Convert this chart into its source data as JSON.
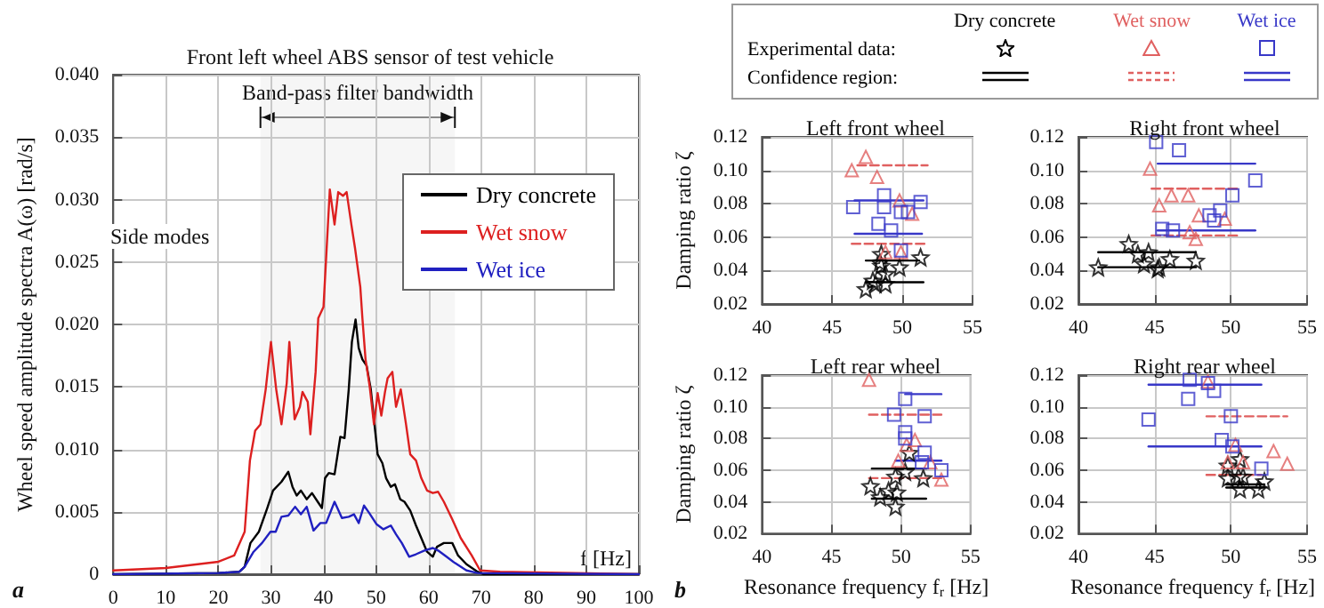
{
  "chart_data": [
    {
      "type": "line",
      "title": "Front left wheel ABS sensor of test vehicle",
      "xlabel": "f [Hz]",
      "ylabel": "Wheel speed amplitude spectra A(ω) [rad/s]",
      "xlim": [
        0,
        100
      ],
      "xticks": [
        0,
        10,
        20,
        30,
        40,
        50,
        60,
        70,
        80,
        90,
        100
      ],
      "ylim": [
        0,
        0.04
      ],
      "yticks": [
        0,
        0.005,
        {
          "value": 0.01,
          "label": "0.010"
        },
        0.015,
        {
          "value": 0.02,
          "label": "0.020"
        },
        0.025,
        {
          "value": 0.03,
          "label": "0.030"
        },
        0.035,
        {
          "value": 0.04,
          "label": "0.040"
        }
      ],
      "grid": true,
      "legend": "top right",
      "bands": [
        {
          "axis": "x",
          "from": 28,
          "to": 65,
          "label": "Band-pass filter bandwidth"
        }
      ],
      "annotations": [
        "Side modes",
        "a"
      ],
      "series": [
        {
          "name": "Dry concrete",
          "color": "#000000",
          "x": [
            0,
            20,
            24,
            25,
            26.1,
            27.7,
            29.3,
            30.4,
            32,
            33.3,
            34.1,
            34.9,
            35.7,
            36.8,
            37.8,
            38.9,
            39.7,
            40.3,
            41,
            42.1,
            43.2,
            44,
            44.8,
            45.4,
            46.1,
            46.7,
            47.4,
            48.2,
            49,
            49.6,
            50.3,
            51.2,
            51.9,
            52.8,
            53.6,
            54.6,
            55.4,
            56.5,
            57.6,
            58.6,
            59.7,
            60.8,
            61.6,
            62.9,
            64.5,
            65.6,
            67.2,
            69.3,
            70.4,
            100
          ],
          "values": [
            0,
            0.0001,
            0.0002,
            0.0006,
            0.0025,
            0.0034,
            0.0053,
            0.0067,
            0.0074,
            0.0082,
            0.007,
            0.0063,
            0.0067,
            0.006,
            0.0065,
            0.0058,
            0.0053,
            0.0077,
            0.0081,
            0.008,
            0.011,
            0.0109,
            0.0148,
            0.0186,
            0.0204,
            0.0181,
            0.0172,
            0.0167,
            0.0148,
            0.0124,
            0.0096,
            0.0089,
            0.0077,
            0.007,
            0.0072,
            0.006,
            0.0058,
            0.0051,
            0.0039,
            0.0029,
            0.0018,
            0.0014,
            0.0022,
            0.0025,
            0.0025,
            0.0015,
            0.0008,
            0.0002,
            0,
            0
          ]
        },
        {
          "name": "Wet snow",
          "color": "#dd2020",
          "x": [
            0,
            10,
            20,
            23,
            25,
            26,
            27,
            28,
            29,
            30,
            31,
            32,
            33,
            33.5,
            34.5,
            35.5,
            36,
            37,
            37.5,
            38.5,
            39,
            40,
            41.2,
            42.1,
            42.8,
            43.7,
            44.4,
            45.3,
            46,
            47,
            47.4,
            48,
            48.8,
            49.6,
            50.3,
            51,
            51.7,
            52.2,
            53.1,
            53.8,
            54.7,
            55.7,
            56.5,
            57.6,
            58.6,
            59.7,
            60.8,
            61.8,
            62.9,
            64.5,
            66.1,
            68.2,
            69.8,
            73.6,
            100
          ],
          "values": [
            0.0003,
            0.0005,
            0.001,
            0.0015,
            0.0034,
            0.0091,
            0.0115,
            0.012,
            0.0148,
            0.0186,
            0.0148,
            0.012,
            0.0153,
            0.0186,
            0.0124,
            0.0134,
            0.0146,
            0.0138,
            0.0112,
            0.0162,
            0.0205,
            0.0214,
            0.0308,
            0.028,
            0.0306,
            0.0303,
            0.0306,
            0.028,
            0.0261,
            0.023,
            0.0205,
            0.0172,
            0.015,
            0.012,
            0.0145,
            0.0127,
            0.0146,
            0.0157,
            0.0162,
            0.0134,
            0.0148,
            0.012,
            0.0096,
            0.0091,
            0.0077,
            0.0067,
            0.0065,
            0.0066,
            0.0058,
            0.0044,
            0.0029,
            0.0015,
            0.0003,
            0.0002,
            0
          ]
        },
        {
          "name": "Wet ice",
          "color": "#2020c0",
          "x": [
            0,
            20,
            24,
            25,
            26.7,
            28.3,
            29.9,
            30.9,
            32,
            33.3,
            34.6,
            35.7,
            36.8,
            38.1,
            39.4,
            40.5,
            42.1,
            43.5,
            44.8,
            45.8,
            46.7,
            47.7,
            48.7,
            50.1,
            51.4,
            52.8,
            53.8,
            54.9,
            56.3,
            57.6,
            59.2,
            60.8,
            61.8,
            63.4,
            65,
            67.2,
            69.3,
            100
          ],
          "values": [
            0,
            0.0001,
            0.0002,
            0.0006,
            0.0018,
            0.0025,
            0.0034,
            0.0034,
            0.0046,
            0.0047,
            0.0054,
            0.0048,
            0.0054,
            0.0035,
            0.0041,
            0.0041,
            0.0058,
            0.0045,
            0.0046,
            0.0048,
            0.0041,
            0.0055,
            0.0049,
            0.004,
            0.0036,
            0.0039,
            0.0032,
            0.0025,
            0.0014,
            0.0016,
            0.0019,
            0.0021,
            0.0019,
            0.0014,
            0.0009,
            0.0003,
            0.0001,
            0
          ]
        }
      ]
    },
    {
      "type": "scatter",
      "title": "Left front wheel",
      "ylabel": "Damping ratio ζ",
      "xlim": [
        40,
        55
      ],
      "xticks": [
        40,
        45,
        50,
        55
      ],
      "ylim": [
        0.02,
        0.12
      ],
      "yticks": [
        0.02,
        0.04,
        0.06,
        0.08,
        {
          "value": 0.1,
          "label": "0.10"
        },
        0.12
      ],
      "grid": true,
      "legend": "top",
      "annotations": [
        "Experimental data:",
        "Confidence region:"
      ],
      "series": [
        {
          "name": "Dry concrete",
          "color": "#000000",
          "marker": "star",
          "x": [
            51.3,
            48.5,
            48.4,
            48.5,
            48.8,
            49.8,
            48.8,
            47.9,
            47.4,
            48.1
          ],
          "values": [
            0.048,
            0.05,
            0.045,
            0.043,
            0.038,
            0.042,
            0.032,
            0.034,
            0.029,
            0.032
          ]
        },
        {
          "name": "Wet snow",
          "color": "#e06060",
          "marker": "triangle",
          "x": [
            47.4,
            46.4,
            48.2,
            49.8,
            50.7,
            48.8,
            49.9
          ],
          "values": [
            0.108,
            0.1,
            0.096,
            0.082,
            0.074,
            0.051,
            0.051
          ]
        },
        {
          "name": "Wet ice",
          "color": "#3838c8",
          "marker": "square",
          "x": [
            46.5,
            48.7,
            48.7,
            51.3,
            49.9,
            50.4,
            48.3,
            49.2,
            49.9
          ],
          "values": [
            0.078,
            0.085,
            0.078,
            0.081,
            0.075,
            0.075,
            0.068,
            0.064,
            0.052
          ]
        },
        {
          "type": "line",
          "color": "#000000",
          "marker": "none",
          "line_style": "solid",
          "x": [
            47.4,
            51.2
          ],
          "values": [
            0.046,
            0.046
          ]
        },
        {
          "type": "line",
          "color": "#000000",
          "marker": "none",
          "line_style": "solid",
          "x": [
            47.4,
            51.5
          ],
          "values": [
            0.033,
            0.033
          ]
        },
        {
          "type": "line",
          "color": "#e06060",
          "marker": "none",
          "line_style": "dashed",
          "x": [
            46.8,
            51.8
          ],
          "values": [
            0.103,
            0.103
          ]
        },
        {
          "type": "line",
          "color": "#e06060",
          "marker": "none",
          "line_style": "dashed",
          "x": [
            46.4,
            51.8
          ],
          "values": [
            0.056,
            0.056
          ]
        },
        {
          "type": "line",
          "color": "#3838c8",
          "marker": "none",
          "line_style": "solid",
          "x": [
            46.6,
            51.5
          ],
          "values": [
            0.082,
            0.082
          ]
        },
        {
          "type": "line",
          "color": "#3838c8",
          "marker": "none",
          "line_style": "solid",
          "x": [
            46.6,
            51.4
          ],
          "values": [
            0.062,
            0.062
          ]
        }
      ]
    },
    {
      "type": "scatter",
      "title": "Right front wheel",
      "xlim": [
        40,
        55
      ],
      "xticks": [
        40,
        45,
        50,
        55
      ],
      "ylim": [
        0.02,
        0.12
      ],
      "yticks": [
        0.02,
        0.04,
        0.06,
        0.08,
        {
          "value": 0.1,
          "label": "0.10"
        },
        0.12
      ],
      "grid": true,
      "series": [
        {
          "color": "#000000",
          "marker": "star",
          "x": [
            43.3,
            43.9,
            44.6,
            44.3,
            45.3,
            46.0,
            47.7,
            41.3,
            45.2
          ],
          "values": [
            0.056,
            0.05,
            0.051,
            0.044,
            0.042,
            0.047,
            0.046,
            0.042,
            0.041
          ]
        },
        {
          "color": "#e06060",
          "marker": "triangle",
          "x": [
            44.7,
            46.1,
            47.2,
            45.3,
            47.9,
            49.6,
            47.3,
            47.7
          ],
          "values": [
            0.101,
            0.085,
            0.085,
            0.079,
            0.073,
            0.071,
            0.063,
            0.059
          ]
        },
        {
          "color": "#3838c8",
          "marker": "square",
          "x": [
            45.1,
            46.6,
            51.6,
            50.1,
            49.3,
            48.6,
            48.9,
            45.5,
            46.2
          ],
          "values": [
            0.117,
            0.112,
            0.094,
            0.085,
            0.076,
            0.073,
            0.07,
            0.065,
            0.064
          ]
        },
        {
          "type": "line",
          "color": "#000000",
          "marker": "none",
          "line_style": "solid",
          "x": [
            41.3,
            47.7
          ],
          "values": [
            0.051,
            0.051
          ]
        },
        {
          "type": "line",
          "color": "#000000",
          "marker": "none",
          "line_style": "solid",
          "x": [
            41.3,
            47.7
          ],
          "values": [
            0.042,
            0.042
          ]
        },
        {
          "type": "line",
          "color": "#e06060",
          "marker": "none",
          "line_style": "dashed",
          "x": [
            44.8,
            50.6
          ],
          "values": [
            0.089,
            0.089
          ]
        },
        {
          "type": "line",
          "color": "#e06060",
          "marker": "none",
          "line_style": "dashed",
          "x": [
            44.8,
            50.6
          ],
          "values": [
            0.061,
            0.061
          ]
        },
        {
          "type": "line",
          "color": "#3838c8",
          "marker": "none",
          "line_style": "solid",
          "x": [
            45.2,
            51.6
          ],
          "values": [
            0.104,
            0.104
          ]
        },
        {
          "type": "line",
          "color": "#3838c8",
          "marker": "none",
          "line_style": "solid",
          "x": [
            45.2,
            51.6
          ],
          "values": [
            0.064,
            0.064
          ]
        }
      ]
    },
    {
      "type": "scatter",
      "title": "Left rear wheel",
      "xlabel": "Resonance frequency f$_{r}$ [Hz]",
      "ylabel": "Damping ratio ζ",
      "xlim": [
        40,
        55
      ],
      "xticks": [
        40,
        45,
        50,
        55
      ],
      "ylim": [
        0.02,
        0.12
      ],
      "yticks": [
        0.02,
        0.04,
        0.06,
        0.08,
        {
          "value": 0.1,
          "label": "0.10"
        },
        0.12
      ],
      "grid": true,
      "annotations": [
        "b"
      ],
      "series": [
        {
          "color": "#000000",
          "marker": "star",
          "x": [
            50.6,
            49.6,
            50.3,
            51.6,
            47.8,
            49.1,
            49.7,
            48.5,
            49.6
          ],
          "values": [
            0.071,
            0.056,
            0.059,
            0.055,
            0.05,
            0.047,
            0.046,
            0.043,
            0.037
          ]
        },
        {
          "color": "#e06060",
          "marker": "triangle",
          "x": [
            47.7,
            51.0,
            49.8,
            50.4,
            52.1,
            52.9
          ],
          "values": [
            0.117,
            0.079,
            0.066,
            0.076,
            0.065,
            0.054
          ]
        },
        {
          "color": "#3838c8",
          "marker": "square",
          "x": [
            50.3,
            49.5,
            51.7,
            50.3,
            50.3,
            51.7,
            51.5,
            52.9
          ],
          "values": [
            0.105,
            0.095,
            0.094,
            0.084,
            0.08,
            0.071,
            0.065,
            0.06
          ]
        },
        {
          "type": "line",
          "color": "#000000",
          "marker": "none",
          "line_style": "solid",
          "x": [
            47.9,
            51.8
          ],
          "values": [
            0.061,
            0.061
          ]
        },
        {
          "type": "line",
          "color": "#000000",
          "marker": "none",
          "line_style": "solid",
          "x": [
            47.9,
            51.8
          ],
          "values": [
            0.042,
            0.042
          ]
        },
        {
          "type": "line",
          "color": "#e06060",
          "marker": "none",
          "line_style": "dashed",
          "x": [
            47.7,
            52.9
          ],
          "values": [
            0.095,
            0.095
          ]
        },
        {
          "type": "line",
          "color": "#e06060",
          "marker": "none",
          "line_style": "dashed",
          "x": [
            47.7,
            52.9
          ],
          "values": [
            0.055,
            0.055
          ]
        },
        {
          "type": "line",
          "color": "#3838c8",
          "marker": "none",
          "line_style": "solid",
          "x": [
            50.3,
            52.9
          ],
          "values": [
            0.108,
            0.108
          ]
        },
        {
          "type": "line",
          "color": "#3838c8",
          "marker": "none",
          "line_style": "solid",
          "x": [
            49.6,
            52.9
          ],
          "values": [
            0.066,
            0.066
          ]
        }
      ]
    },
    {
      "type": "scatter",
      "title": "Right rear wheel",
      "xlabel": "Resonance frequency f$_{r}$ [Hz]",
      "xlim": [
        40,
        55
      ],
      "xticks": [
        40,
        45,
        50,
        55
      ],
      "ylim": [
        0.02,
        0.12
      ],
      "yticks": [
        0.02,
        0.04,
        0.06,
        0.08,
        {
          "value": 0.1,
          "label": "0.10"
        },
        0.12
      ],
      "grid": true,
      "series": [
        {
          "color": "#000000",
          "marker": "star",
          "x": [
            49.8,
            50.8,
            50.6,
            49.8,
            52.2,
            50.6,
            51.8,
            50.5
          ],
          "values": [
            0.055,
            0.056,
            0.067,
            0.063,
            0.053,
            0.048,
            0.048,
            0.056
          ]
        },
        {
          "color": "#e06060",
          "marker": "triangle",
          "x": [
            48.5,
            52.8,
            53.7,
            49.8,
            50.3,
            50.8
          ],
          "values": [
            0.116,
            0.072,
            0.064,
            0.065,
            0.076,
            0.065
          ]
        },
        {
          "color": "#3838c8",
          "marker": "square",
          "x": [
            47.3,
            48.5,
            48.9,
            47.2,
            44.6,
            50.0,
            49.4,
            50.1,
            52.0
          ],
          "values": [
            0.117,
            0.115,
            0.11,
            0.105,
            0.092,
            0.094,
            0.079,
            0.075,
            0.061
          ]
        },
        {
          "type": "line",
          "color": "#000000",
          "marker": "none",
          "line_style": "solid",
          "x": [
            49.7,
            52.2
          ],
          "values": [
            0.051,
            0.051
          ]
        },
        {
          "type": "line",
          "color": "#000000",
          "marker": "none",
          "line_style": "solid",
          "x": [
            49.7,
            52.2
          ],
          "values": [
            0.049,
            0.049
          ]
        },
        {
          "type": "line",
          "color": "#e06060",
          "marker": "none",
          "line_style": "dashed",
          "x": [
            48.4,
            53.7
          ],
          "values": [
            0.094,
            0.094
          ]
        },
        {
          "type": "line",
          "color": "#e06060",
          "marker": "none",
          "line_style": "dashed",
          "x": [
            48.4,
            52.0
          ],
          "values": [
            0.057,
            0.057
          ]
        },
        {
          "type": "line",
          "color": "#3838c8",
          "marker": "none",
          "line_style": "solid",
          "x": [
            44.6,
            52.0
          ],
          "values": [
            0.114,
            0.114
          ]
        },
        {
          "type": "line",
          "color": "#3838c8",
          "marker": "none",
          "line_style": "solid",
          "x": [
            44.6,
            52.0
          ],
          "values": [
            0.075,
            0.075
          ]
        }
      ]
    }
  ]
}
